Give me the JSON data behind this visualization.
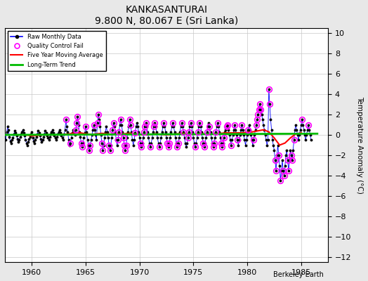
{
  "title": "KANKASANTURAI",
  "subtitle": "9.800 N, 80.067 E (Sri Lanka)",
  "ylabel": "Temperature Anomaly (°C)",
  "credit": "Berkeley Earth",
  "xlim": [
    1957.5,
    1987.5
  ],
  "ylim": [
    -12.5,
    10.5
  ],
  "yticks": [
    -12,
    -10,
    -8,
    -6,
    -4,
    -2,
    0,
    2,
    4,
    6,
    8,
    10
  ],
  "xticks": [
    1960,
    1965,
    1970,
    1975,
    1980,
    1985
  ],
  "bg_color": "#e8e8e8",
  "plot_bg_color": "#ffffff",
  "raw_color": "#0000ff",
  "qc_color": "#ff00ff",
  "mavg_color": "#ff0000",
  "trend_color": "#00bb00",
  "raw_data": [
    [
      1957.583,
      -0.5
    ],
    [
      1957.667,
      0.3
    ],
    [
      1957.75,
      0.8
    ],
    [
      1957.833,
      0.5
    ],
    [
      1957.917,
      -0.2
    ],
    [
      1958.0,
      -0.6
    ],
    [
      1958.083,
      -0.8
    ],
    [
      1958.167,
      -0.5
    ],
    [
      1958.25,
      -0.3
    ],
    [
      1958.333,
      0.1
    ],
    [
      1958.417,
      0.4
    ],
    [
      1958.5,
      0.2
    ],
    [
      1958.583,
      -0.1
    ],
    [
      1958.667,
      -0.4
    ],
    [
      1958.75,
      -0.7
    ],
    [
      1958.833,
      -0.5
    ],
    [
      1958.917,
      -0.2
    ],
    [
      1959.0,
      0.1
    ],
    [
      1959.083,
      0.3
    ],
    [
      1959.167,
      0.5
    ],
    [
      1959.25,
      0.2
    ],
    [
      1959.333,
      -0.1
    ],
    [
      1959.417,
      -0.5
    ],
    [
      1959.5,
      -0.8
    ],
    [
      1959.583,
      -1.0
    ],
    [
      1959.667,
      -0.7
    ],
    [
      1959.75,
      -0.4
    ],
    [
      1959.833,
      -0.2
    ],
    [
      1959.917,
      0.1
    ],
    [
      1960.0,
      0.3
    ],
    [
      1960.083,
      -0.3
    ],
    [
      1960.167,
      -0.6
    ],
    [
      1960.25,
      -0.8
    ],
    [
      1960.333,
      -0.5
    ],
    [
      1960.417,
      -0.2
    ],
    [
      1960.5,
      0.1
    ],
    [
      1960.583,
      0.4
    ],
    [
      1960.667,
      0.2
    ],
    [
      1960.75,
      -0.1
    ],
    [
      1960.833,
      -0.4
    ],
    [
      1960.917,
      -0.7
    ],
    [
      1961.0,
      -0.5
    ],
    [
      1961.083,
      -0.2
    ],
    [
      1961.167,
      0.1
    ],
    [
      1961.25,
      0.4
    ],
    [
      1961.333,
      0.2
    ],
    [
      1961.417,
      -0.1
    ],
    [
      1961.5,
      -0.3
    ],
    [
      1961.583,
      -0.5
    ],
    [
      1961.667,
      -0.2
    ],
    [
      1961.75,
      0.1
    ],
    [
      1961.833,
      0.3
    ],
    [
      1961.917,
      0.5
    ],
    [
      1962.0,
      0.2
    ],
    [
      1962.083,
      -0.1
    ],
    [
      1962.167,
      -0.3
    ],
    [
      1962.25,
      -0.5
    ],
    [
      1962.333,
      -0.2
    ],
    [
      1962.417,
      0.1
    ],
    [
      1962.5,
      0.3
    ],
    [
      1962.583,
      0.5
    ],
    [
      1962.667,
      0.2
    ],
    [
      1962.75,
      -0.1
    ],
    [
      1962.833,
      -0.3
    ],
    [
      1962.917,
      -0.5
    ],
    [
      1963.0,
      0.1
    ],
    [
      1963.083,
      0.5
    ],
    [
      1963.167,
      1.5
    ],
    [
      1963.25,
      0.8
    ],
    [
      1963.333,
      0.3
    ],
    [
      1963.417,
      -0.5
    ],
    [
      1963.5,
      -1.0
    ],
    [
      1963.583,
      -0.8
    ],
    [
      1963.667,
      -0.3
    ],
    [
      1963.75,
      0.2
    ],
    [
      1963.833,
      0.5
    ],
    [
      1963.917,
      0.3
    ],
    [
      1964.0,
      0.0
    ],
    [
      1964.083,
      0.5
    ],
    [
      1964.167,
      1.2
    ],
    [
      1964.25,
      1.8
    ],
    [
      1964.333,
      1.0
    ],
    [
      1964.417,
      0.3
    ],
    [
      1964.5,
      -0.2
    ],
    [
      1964.583,
      -0.8
    ],
    [
      1964.667,
      -1.2
    ],
    [
      1964.75,
      -0.8
    ],
    [
      1964.833,
      -0.3
    ],
    [
      1964.917,
      0.2
    ],
    [
      1965.0,
      0.8
    ],
    [
      1965.083,
      0.3
    ],
    [
      1965.167,
      -0.5
    ],
    [
      1965.25,
      -1.0
    ],
    [
      1965.333,
      -1.5
    ],
    [
      1965.417,
      -1.0
    ],
    [
      1965.5,
      -0.5
    ],
    [
      1965.583,
      0.0
    ],
    [
      1965.667,
      0.5
    ],
    [
      1965.75,
      1.0
    ],
    [
      1965.833,
      0.5
    ],
    [
      1965.917,
      0.0
    ],
    [
      1966.0,
      -0.5
    ],
    [
      1966.083,
      1.2
    ],
    [
      1966.167,
      2.0
    ],
    [
      1966.25,
      1.5
    ],
    [
      1966.333,
      0.8
    ],
    [
      1966.417,
      0.0
    ],
    [
      1966.5,
      -0.8
    ],
    [
      1966.583,
      -1.5
    ],
    [
      1966.667,
      -1.0
    ],
    [
      1966.75,
      -0.3
    ],
    [
      1966.833,
      0.3
    ],
    [
      1966.917,
      0.8
    ],
    [
      1967.0,
      0.3
    ],
    [
      1967.083,
      -0.3
    ],
    [
      1967.167,
      -1.0
    ],
    [
      1967.25,
      -1.5
    ],
    [
      1967.333,
      -1.0
    ],
    [
      1967.417,
      -0.3
    ],
    [
      1967.5,
      0.5
    ],
    [
      1967.583,
      1.2
    ],
    [
      1967.667,
      0.8
    ],
    [
      1967.75,
      0.3
    ],
    [
      1967.833,
      -0.5
    ],
    [
      1967.917,
      -1.0
    ],
    [
      1968.0,
      -0.5
    ],
    [
      1968.083,
      0.3
    ],
    [
      1968.167,
      1.0
    ],
    [
      1968.25,
      1.5
    ],
    [
      1968.333,
      1.0
    ],
    [
      1968.417,
      0.3
    ],
    [
      1968.5,
      -0.3
    ],
    [
      1968.583,
      -1.0
    ],
    [
      1968.667,
      -1.5
    ],
    [
      1968.75,
      -1.0
    ],
    [
      1968.833,
      -0.3
    ],
    [
      1968.917,
      0.3
    ],
    [
      1969.0,
      0.8
    ],
    [
      1969.083,
      1.5
    ],
    [
      1969.167,
      1.0
    ],
    [
      1969.25,
      0.3
    ],
    [
      1969.333,
      -0.5
    ],
    [
      1969.417,
      -1.0
    ],
    [
      1969.5,
      -0.5
    ],
    [
      1969.583,
      0.2
    ],
    [
      1969.667,
      0.8
    ],
    [
      1969.75,
      1.2
    ],
    [
      1969.833,
      0.8
    ],
    [
      1969.917,
      0.3
    ],
    [
      1970.0,
      -0.3
    ],
    [
      1970.083,
      -0.8
    ],
    [
      1970.167,
      -1.2
    ],
    [
      1970.25,
      -0.8
    ],
    [
      1970.333,
      -0.3
    ],
    [
      1970.417,
      0.3
    ],
    [
      1970.5,
      0.8
    ],
    [
      1970.583,
      1.2
    ],
    [
      1970.667,
      0.8
    ],
    [
      1970.75,
      0.3
    ],
    [
      1970.833,
      -0.3
    ],
    [
      1970.917,
      -0.8
    ],
    [
      1971.0,
      -1.2
    ],
    [
      1971.083,
      -0.8
    ],
    [
      1971.167,
      -0.3
    ],
    [
      1971.25,
      0.3
    ],
    [
      1971.333,
      0.8
    ],
    [
      1971.417,
      1.2
    ],
    [
      1971.5,
      0.8
    ],
    [
      1971.583,
      0.3
    ],
    [
      1971.667,
      -0.3
    ],
    [
      1971.75,
      -0.8
    ],
    [
      1971.833,
      -1.2
    ],
    [
      1971.917,
      -0.8
    ],
    [
      1972.0,
      -0.3
    ],
    [
      1972.083,
      0.3
    ],
    [
      1972.167,
      0.8
    ],
    [
      1972.25,
      1.2
    ],
    [
      1972.333,
      0.8
    ],
    [
      1972.417,
      0.3
    ],
    [
      1972.5,
      -0.3
    ],
    [
      1972.583,
      -0.8
    ],
    [
      1972.667,
      -1.2
    ],
    [
      1972.75,
      -0.8
    ],
    [
      1972.833,
      -0.3
    ],
    [
      1972.917,
      0.3
    ],
    [
      1973.0,
      0.8
    ],
    [
      1973.083,
      1.2
    ],
    [
      1973.167,
      0.8
    ],
    [
      1973.25,
      0.3
    ],
    [
      1973.333,
      -0.3
    ],
    [
      1973.417,
      -0.8
    ],
    [
      1973.5,
      -1.2
    ],
    [
      1973.583,
      -0.8
    ],
    [
      1973.667,
      -0.3
    ],
    [
      1973.75,
      0.3
    ],
    [
      1973.833,
      0.8
    ],
    [
      1973.917,
      1.2
    ],
    [
      1974.0,
      0.8
    ],
    [
      1974.083,
      0.3
    ],
    [
      1974.167,
      -0.3
    ],
    [
      1974.25,
      -0.8
    ],
    [
      1974.333,
      -1.2
    ],
    [
      1974.417,
      -0.8
    ],
    [
      1974.5,
      -0.3
    ],
    [
      1974.583,
      0.3
    ],
    [
      1974.667,
      0.8
    ],
    [
      1974.75,
      1.2
    ],
    [
      1974.833,
      0.8
    ],
    [
      1974.917,
      0.3
    ],
    [
      1975.0,
      -0.3
    ],
    [
      1975.083,
      -0.8
    ],
    [
      1975.167,
      -1.2
    ],
    [
      1975.25,
      -0.8
    ],
    [
      1975.333,
      -0.3
    ],
    [
      1975.417,
      0.3
    ],
    [
      1975.5,
      0.8
    ],
    [
      1975.583,
      1.2
    ],
    [
      1975.667,
      0.8
    ],
    [
      1975.75,
      0.3
    ],
    [
      1975.833,
      -0.3
    ],
    [
      1975.917,
      -0.8
    ],
    [
      1976.0,
      -1.2
    ],
    [
      1976.083,
      -0.8
    ],
    [
      1976.167,
      -0.3
    ],
    [
      1976.25,
      0.3
    ],
    [
      1976.333,
      0.8
    ],
    [
      1976.417,
      1.2
    ],
    [
      1976.5,
      0.8
    ],
    [
      1976.583,
      0.3
    ],
    [
      1976.667,
      -0.3
    ],
    [
      1976.75,
      -0.8
    ],
    [
      1976.833,
      -1.2
    ],
    [
      1976.917,
      -0.8
    ],
    [
      1977.0,
      -0.3
    ],
    [
      1977.083,
      0.3
    ],
    [
      1977.167,
      0.8
    ],
    [
      1977.25,
      1.2
    ],
    [
      1977.333,
      0.8
    ],
    [
      1977.417,
      0.3
    ],
    [
      1977.5,
      -0.3
    ],
    [
      1977.583,
      -0.8
    ],
    [
      1977.667,
      -1.2
    ],
    [
      1977.75,
      -0.8
    ],
    [
      1977.833,
      -0.3
    ],
    [
      1977.917,
      0.3
    ],
    [
      1978.0,
      0.5
    ],
    [
      1978.083,
      0.8
    ],
    [
      1978.167,
      1.0
    ],
    [
      1978.25,
      0.5
    ],
    [
      1978.333,
      0.0
    ],
    [
      1978.417,
      -0.5
    ],
    [
      1978.5,
      -1.0
    ],
    [
      1978.583,
      -0.5
    ],
    [
      1978.667,
      0.0
    ],
    [
      1978.75,
      0.5
    ],
    [
      1978.833,
      1.0
    ],
    [
      1978.917,
      0.5
    ],
    [
      1979.0,
      0.0
    ],
    [
      1979.083,
      -0.5
    ],
    [
      1979.167,
      -1.0
    ],
    [
      1979.25,
      -0.5
    ],
    [
      1979.333,
      0.0
    ],
    [
      1979.417,
      0.5
    ],
    [
      1979.5,
      1.0
    ],
    [
      1979.583,
      0.5
    ],
    [
      1979.667,
      0.0
    ],
    [
      1979.75,
      -0.5
    ],
    [
      1979.833,
      -1.0
    ],
    [
      1979.917,
      -0.5
    ],
    [
      1980.0,
      0.0
    ],
    [
      1980.083,
      0.5
    ],
    [
      1980.167,
      1.0
    ],
    [
      1980.25,
      0.5
    ],
    [
      1980.333,
      0.0
    ],
    [
      1980.417,
      -0.5
    ],
    [
      1980.5,
      -1.0
    ],
    [
      1980.583,
      -0.5
    ],
    [
      1980.667,
      0.0
    ],
    [
      1980.75,
      0.5
    ],
    [
      1980.833,
      1.0
    ],
    [
      1980.917,
      1.5
    ],
    [
      1981.0,
      2.0
    ],
    [
      1981.083,
      2.5
    ],
    [
      1981.167,
      3.0
    ],
    [
      1981.25,
      2.5
    ],
    [
      1981.333,
      2.0
    ],
    [
      1981.417,
      1.5
    ],
    [
      1981.5,
      1.0
    ],
    [
      1981.583,
      0.5
    ],
    [
      1981.667,
      0.0
    ],
    [
      1981.75,
      -0.5
    ],
    [
      1981.833,
      -1.0
    ],
    [
      1981.917,
      -0.5
    ],
    [
      1982.0,
      4.5
    ],
    [
      1982.083,
      3.0
    ],
    [
      1982.167,
      1.5
    ],
    [
      1982.25,
      0.5
    ],
    [
      1982.333,
      -0.5
    ],
    [
      1982.417,
      -1.0
    ],
    [
      1982.5,
      -1.5
    ],
    [
      1982.583,
      -2.5
    ],
    [
      1982.667,
      -3.5
    ],
    [
      1982.75,
      -2.0
    ],
    [
      1982.833,
      -1.0
    ],
    [
      1982.917,
      -2.0
    ],
    [
      1983.0,
      -3.0
    ],
    [
      1983.083,
      -4.5
    ],
    [
      1983.167,
      -3.5
    ],
    [
      1983.25,
      -2.5
    ],
    [
      1983.333,
      -3.5
    ],
    [
      1983.417,
      -4.0
    ],
    [
      1983.5,
      -3.0
    ],
    [
      1983.583,
      -2.0
    ],
    [
      1983.667,
      -1.5
    ],
    [
      1983.75,
      -2.5
    ],
    [
      1983.833,
      -3.5
    ],
    [
      1983.917,
      -2.5
    ],
    [
      1984.0,
      -1.5
    ],
    [
      1984.083,
      -2.0
    ],
    [
      1984.167,
      -2.5
    ],
    [
      1984.25,
      -1.5
    ],
    [
      1984.333,
      -0.5
    ],
    [
      1984.417,
      0.5
    ],
    [
      1984.5,
      1.0
    ],
    [
      1984.583,
      0.5
    ],
    [
      1984.667,
      0.0
    ],
    [
      1984.75,
      -0.5
    ],
    [
      1984.833,
      0.0
    ],
    [
      1984.917,
      0.5
    ],
    [
      1985.0,
      1.0
    ],
    [
      1985.083,
      1.5
    ],
    [
      1985.167,
      1.0
    ],
    [
      1985.25,
      0.5
    ],
    [
      1985.333,
      0.0
    ],
    [
      1985.417,
      -0.5
    ],
    [
      1985.5,
      0.0
    ],
    [
      1985.583,
      0.5
    ],
    [
      1985.667,
      1.0
    ],
    [
      1985.75,
      0.5
    ],
    [
      1985.833,
      0.0
    ],
    [
      1985.917,
      -0.5
    ]
  ],
  "qc_fail_x": [
    1963.167,
    1963.583,
    1964.083,
    1964.167,
    1964.25,
    1964.583,
    1964.667,
    1965.0,
    1965.333,
    1965.417,
    1965.75,
    1966.083,
    1966.167,
    1966.5,
    1966.583,
    1967.167,
    1967.25,
    1967.5,
    1967.583,
    1968.0,
    1968.083,
    1968.25,
    1968.5,
    1968.583,
    1968.667,
    1968.75,
    1969.083,
    1969.167,
    1969.583,
    1970.083,
    1970.167,
    1970.417,
    1970.5,
    1970.583,
    1971.0,
    1971.333,
    1971.417,
    1971.833,
    1972.25,
    1972.583,
    1972.667,
    1972.75,
    1973.083,
    1973.5,
    1973.583,
    1973.917,
    1974.083,
    1974.5,
    1974.583,
    1974.75,
    1975.167,
    1975.417,
    1975.583,
    1975.917,
    1976.0,
    1976.25,
    1976.5,
    1976.833,
    1976.917,
    1977.083,
    1977.25,
    1977.583,
    1977.667,
    1977.833,
    1978.083,
    1978.167,
    1978.5,
    1978.833,
    1979.083,
    1979.5,
    1980.083,
    1980.583,
    1980.833,
    1980.917,
    1981.0,
    1981.083,
    1981.167,
    1981.25,
    1982.0,
    1982.083,
    1982.583,
    1982.667,
    1982.917,
    1983.083,
    1983.333,
    1983.417,
    1983.75,
    1983.833,
    1984.083,
    1984.167,
    1984.333,
    1985.083,
    1985.667
  ],
  "mavg_data": [
    [
      1959.5,
      0.0
    ],
    [
      1960.0,
      -0.1
    ],
    [
      1960.5,
      -0.05
    ],
    [
      1961.0,
      0.0
    ],
    [
      1961.5,
      0.0
    ],
    [
      1962.0,
      0.0
    ],
    [
      1962.5,
      0.0
    ],
    [
      1963.0,
      0.05
    ],
    [
      1963.5,
      0.1
    ],
    [
      1964.0,
      0.2
    ],
    [
      1964.5,
      0.2
    ],
    [
      1965.0,
      0.1
    ],
    [
      1965.5,
      0.05
    ],
    [
      1966.0,
      0.1
    ],
    [
      1966.5,
      0.15
    ],
    [
      1967.0,
      0.1
    ],
    [
      1967.5,
      0.05
    ],
    [
      1968.0,
      0.1
    ],
    [
      1968.5,
      0.1
    ],
    [
      1969.0,
      0.15
    ],
    [
      1969.5,
      0.1
    ],
    [
      1970.0,
      0.05
    ],
    [
      1970.5,
      0.0
    ],
    [
      1971.0,
      0.05
    ],
    [
      1971.5,
      0.1
    ],
    [
      1972.0,
      0.05
    ],
    [
      1972.5,
      0.0
    ],
    [
      1973.0,
      0.05
    ],
    [
      1973.5,
      0.1
    ],
    [
      1974.0,
      0.15
    ],
    [
      1974.5,
      0.1
    ],
    [
      1975.0,
      0.05
    ],
    [
      1975.5,
      0.1
    ],
    [
      1976.0,
      0.1
    ],
    [
      1976.5,
      0.05
    ],
    [
      1977.0,
      0.1
    ],
    [
      1977.5,
      0.15
    ],
    [
      1978.0,
      0.2
    ],
    [
      1978.5,
      0.2
    ],
    [
      1979.0,
      0.2
    ],
    [
      1979.5,
      0.2
    ],
    [
      1980.0,
      0.25
    ],
    [
      1980.5,
      0.3
    ],
    [
      1981.0,
      0.4
    ],
    [
      1981.5,
      0.5
    ],
    [
      1982.0,
      0.3
    ],
    [
      1982.5,
      -0.3
    ],
    [
      1983.0,
      -1.0
    ],
    [
      1983.5,
      -0.8
    ],
    [
      1984.0,
      -0.3
    ],
    [
      1984.5,
      0.1
    ],
    [
      1985.0,
      0.2
    ]
  ],
  "trend_x": [
    1957.5,
    1986.5
  ],
  "trend_y": [
    0.0,
    0.12
  ]
}
